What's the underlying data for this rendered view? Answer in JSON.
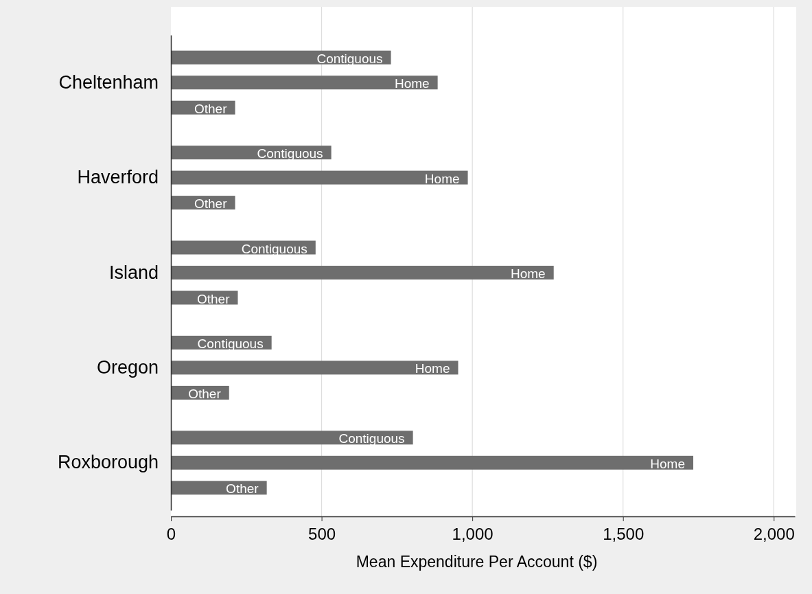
{
  "chart_data": {
    "type": "bar",
    "orientation": "horizontal",
    "xlabel": "Mean Expenditure Per Account ($)",
    "categories": [
      "Cheltenham",
      "Haverford",
      "Island",
      "Oregon",
      "Roxborough"
    ],
    "series": [
      {
        "name": "Contiguous",
        "color": "#6e6e6e",
        "values": [
          730,
          532,
          480,
          334,
          803
        ]
      },
      {
        "name": "Home",
        "color": "#6e6e6e",
        "values": [
          885,
          985,
          1270,
          953,
          1733
        ]
      },
      {
        "name": "Other",
        "color": "#6e6e6e",
        "values": [
          213,
          213,
          222,
          193,
          318
        ]
      }
    ],
    "xlim": [
      0,
      2070
    ],
    "xticks": [
      0,
      500,
      {
        "value": 1000,
        "label": "1,000"
      },
      {
        "value": 1500,
        "label": "1,500"
      },
      {
        "value": 2000,
        "label": "2,000"
      }
    ],
    "grid": "x"
  }
}
